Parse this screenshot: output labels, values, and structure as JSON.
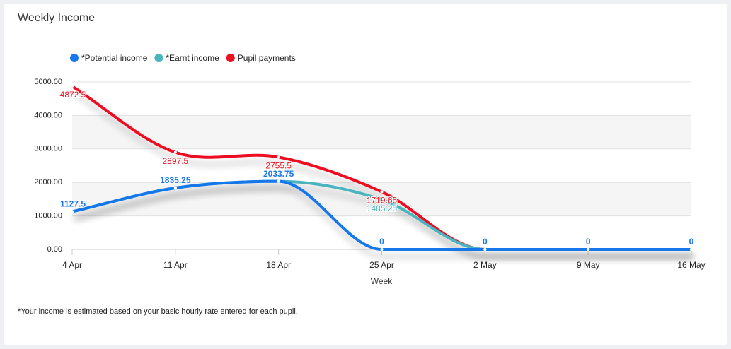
{
  "chart_data": {
    "type": "spline",
    "title": "Weekly Income",
    "x_label": "Week",
    "footnote": "*Your income is estimated based on your basic hourly rate entered for each pupil.",
    "categories": [
      "4 Apr",
      "11 Apr",
      "18 Apr",
      "25 Apr",
      "2 May",
      "9 May",
      "16 May"
    ],
    "series": [
      {
        "name": "*Potential income",
        "color": "#1877ea",
        "values": [
          1127.5,
          1835.25,
          2033.75,
          0,
          0,
          0,
          0
        ]
      },
      {
        "name": "*Earnt income",
        "color": "#4bb4bf",
        "values": [
          1127.5,
          1835.25,
          2033.75,
          1485.25,
          0,
          0,
          0
        ]
      },
      {
        "name": "Pupil payments",
        "color": "#ec1020",
        "values": [
          4872.5,
          2897.5,
          2755.5,
          1719.65,
          0,
          0,
          0
        ]
      }
    ],
    "ylim": [
      0,
      5000
    ],
    "yticks": [
      {
        "value": 0,
        "label": "0.00"
      },
      {
        "value": 1000,
        "label": "1000.00"
      },
      {
        "value": 2000,
        "label": "2000.00"
      },
      {
        "value": 3000,
        "label": "3000.00"
      },
      {
        "value": 4000,
        "label": "4000.00"
      },
      {
        "value": 5000,
        "label": "5000.00"
      }
    ],
    "grid": true,
    "legend": "top-left"
  }
}
